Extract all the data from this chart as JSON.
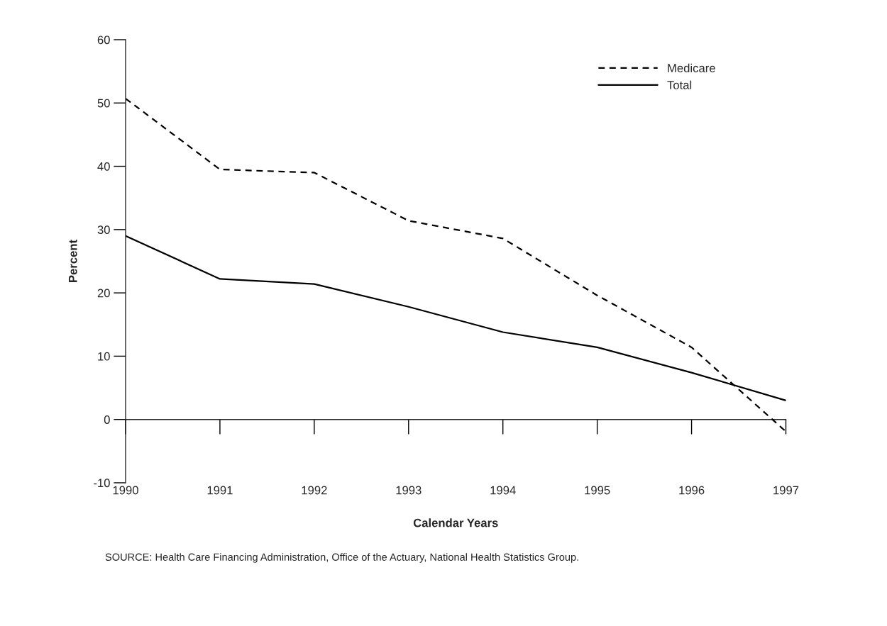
{
  "chart_data": {
    "type": "line",
    "xlabel": "Calendar Years",
    "ylabel": "Percent",
    "categories": [
      "1990",
      "1991",
      "1992",
      "1993",
      "1994",
      "1995",
      "1996",
      "1997"
    ],
    "series": [
      {
        "name": "Medicare",
        "color": "#000000",
        "line_style": "dashed",
        "values": [
          50.7,
          39.5,
          39.0,
          31.4,
          28.6,
          19.6,
          11.4,
          -1.9
        ]
      },
      {
        "name": "Total",
        "color": "#000000",
        "line_style": "solid",
        "values": [
          29.0,
          22.2,
          21.4,
          17.8,
          13.8,
          11.4,
          7.4,
          3.0
        ]
      }
    ],
    "ylim": [
      -10,
      60
    ],
    "yticks": [
      -10,
      0,
      10,
      20,
      30,
      40,
      50,
      60
    ],
    "legend": "top right",
    "marker": "none",
    "annotations": [
      "SOURCE: Health Care Financing Administration, Office of the Actuary, National Health Statistics Group."
    ]
  }
}
